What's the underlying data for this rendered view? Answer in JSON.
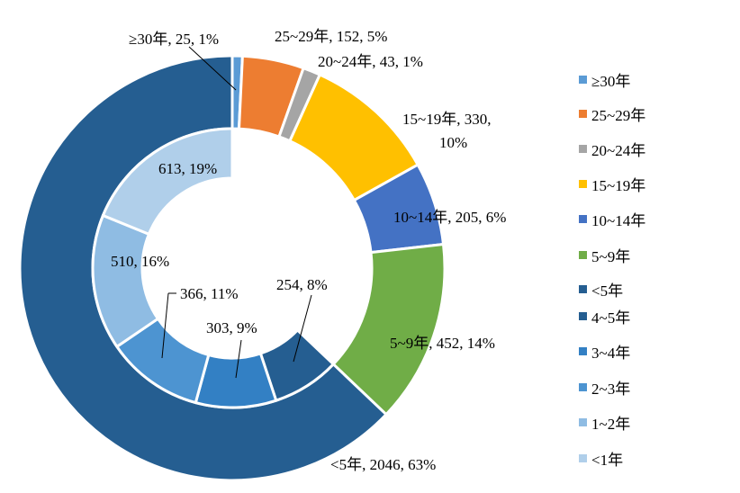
{
  "chart_data": {
    "type": "pie",
    "subtype": "nested-donut",
    "legend_position": "right",
    "outer_ring": [
      {
        "name": "≥30年",
        "value": 25,
        "percent": "1%",
        "label": "≥30年, 25, 1%",
        "color": "#5B9BD5"
      },
      {
        "name": "25~29年",
        "value": 152,
        "percent": "5%",
        "label": "25~29年, 152, 5%",
        "color": "#ED7D31"
      },
      {
        "name": "20~24年",
        "value": 43,
        "percent": "1%",
        "label": "20~24年, 43, 1%",
        "color": "#A5A5A5"
      },
      {
        "name": "15~19年",
        "value": 330,
        "percent": "10%",
        "label": "15~19年, 330,",
        "label2": "10%",
        "color": "#FFC000"
      },
      {
        "name": "10~14年",
        "value": 205,
        "percent": "6%",
        "label": "10~14年, 205, 6%",
        "color": "#4472C4"
      },
      {
        "name": "5~9年",
        "value": 452,
        "percent": "14%",
        "label": "5~9年, 452, 14%",
        "color": "#70AD47"
      },
      {
        "name": "<5年",
        "value": 2046,
        "percent": "63%",
        "label": "<5年, 2046, 63%",
        "color": "#255E91"
      }
    ],
    "inner_ring": [
      {
        "name": "4~5年",
        "value": 254,
        "percent": "8%",
        "label": "254, 8%",
        "color": "#255E91"
      },
      {
        "name": "3~4年",
        "value": 303,
        "percent": "9%",
        "label": "303, 9%",
        "color": "#3380C4"
      },
      {
        "name": "2~3年",
        "value": 366,
        "percent": "11%",
        "label": "366, 11%",
        "color": "#4D94D1"
      },
      {
        "name": "1~2年",
        "value": 510,
        "percent": "16%",
        "label": "510, 16%",
        "color": "#8FBCE3"
      },
      {
        "name": "<1年",
        "value": 613,
        "percent": "19%",
        "label": "613, 19%",
        "color": "#B0CFEA"
      }
    ],
    "legend": [
      "≥30年",
      "25~29年",
      "20~24年",
      "15~19年",
      "10~14年",
      "5~9年",
      "<5年",
      "4~5年",
      "3~4年",
      "2~3年",
      "1~2年",
      "<1年"
    ]
  }
}
